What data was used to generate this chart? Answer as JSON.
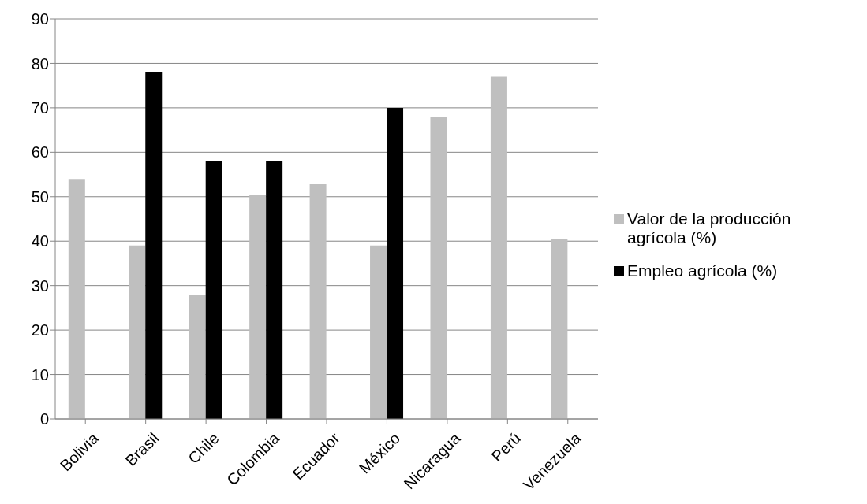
{
  "chart_data": {
    "type": "bar",
    "categories": [
      "Bolivia",
      "Brasil",
      "Chile",
      "Colombia",
      "Ecuador",
      "México",
      "Nicaragua",
      "Perú",
      "Venezuela"
    ],
    "series": [
      {
        "name": "Valor de la producción agrícola (%)",
        "color": "#bfbfbf",
        "values": [
          54,
          39,
          28,
          50.5,
          52.8,
          39,
          68,
          77,
          40.5
        ]
      },
      {
        "name": "Empleo agrícola (%)",
        "color": "#000000",
        "values": [
          null,
          78,
          58,
          58,
          null,
          70,
          null,
          null,
          null
        ]
      }
    ],
    "ylim": [
      0,
      90
    ],
    "yticks": [
      0,
      10,
      20,
      30,
      40,
      50,
      60,
      70,
      80,
      90
    ],
    "grid": "y",
    "legend": "right"
  }
}
